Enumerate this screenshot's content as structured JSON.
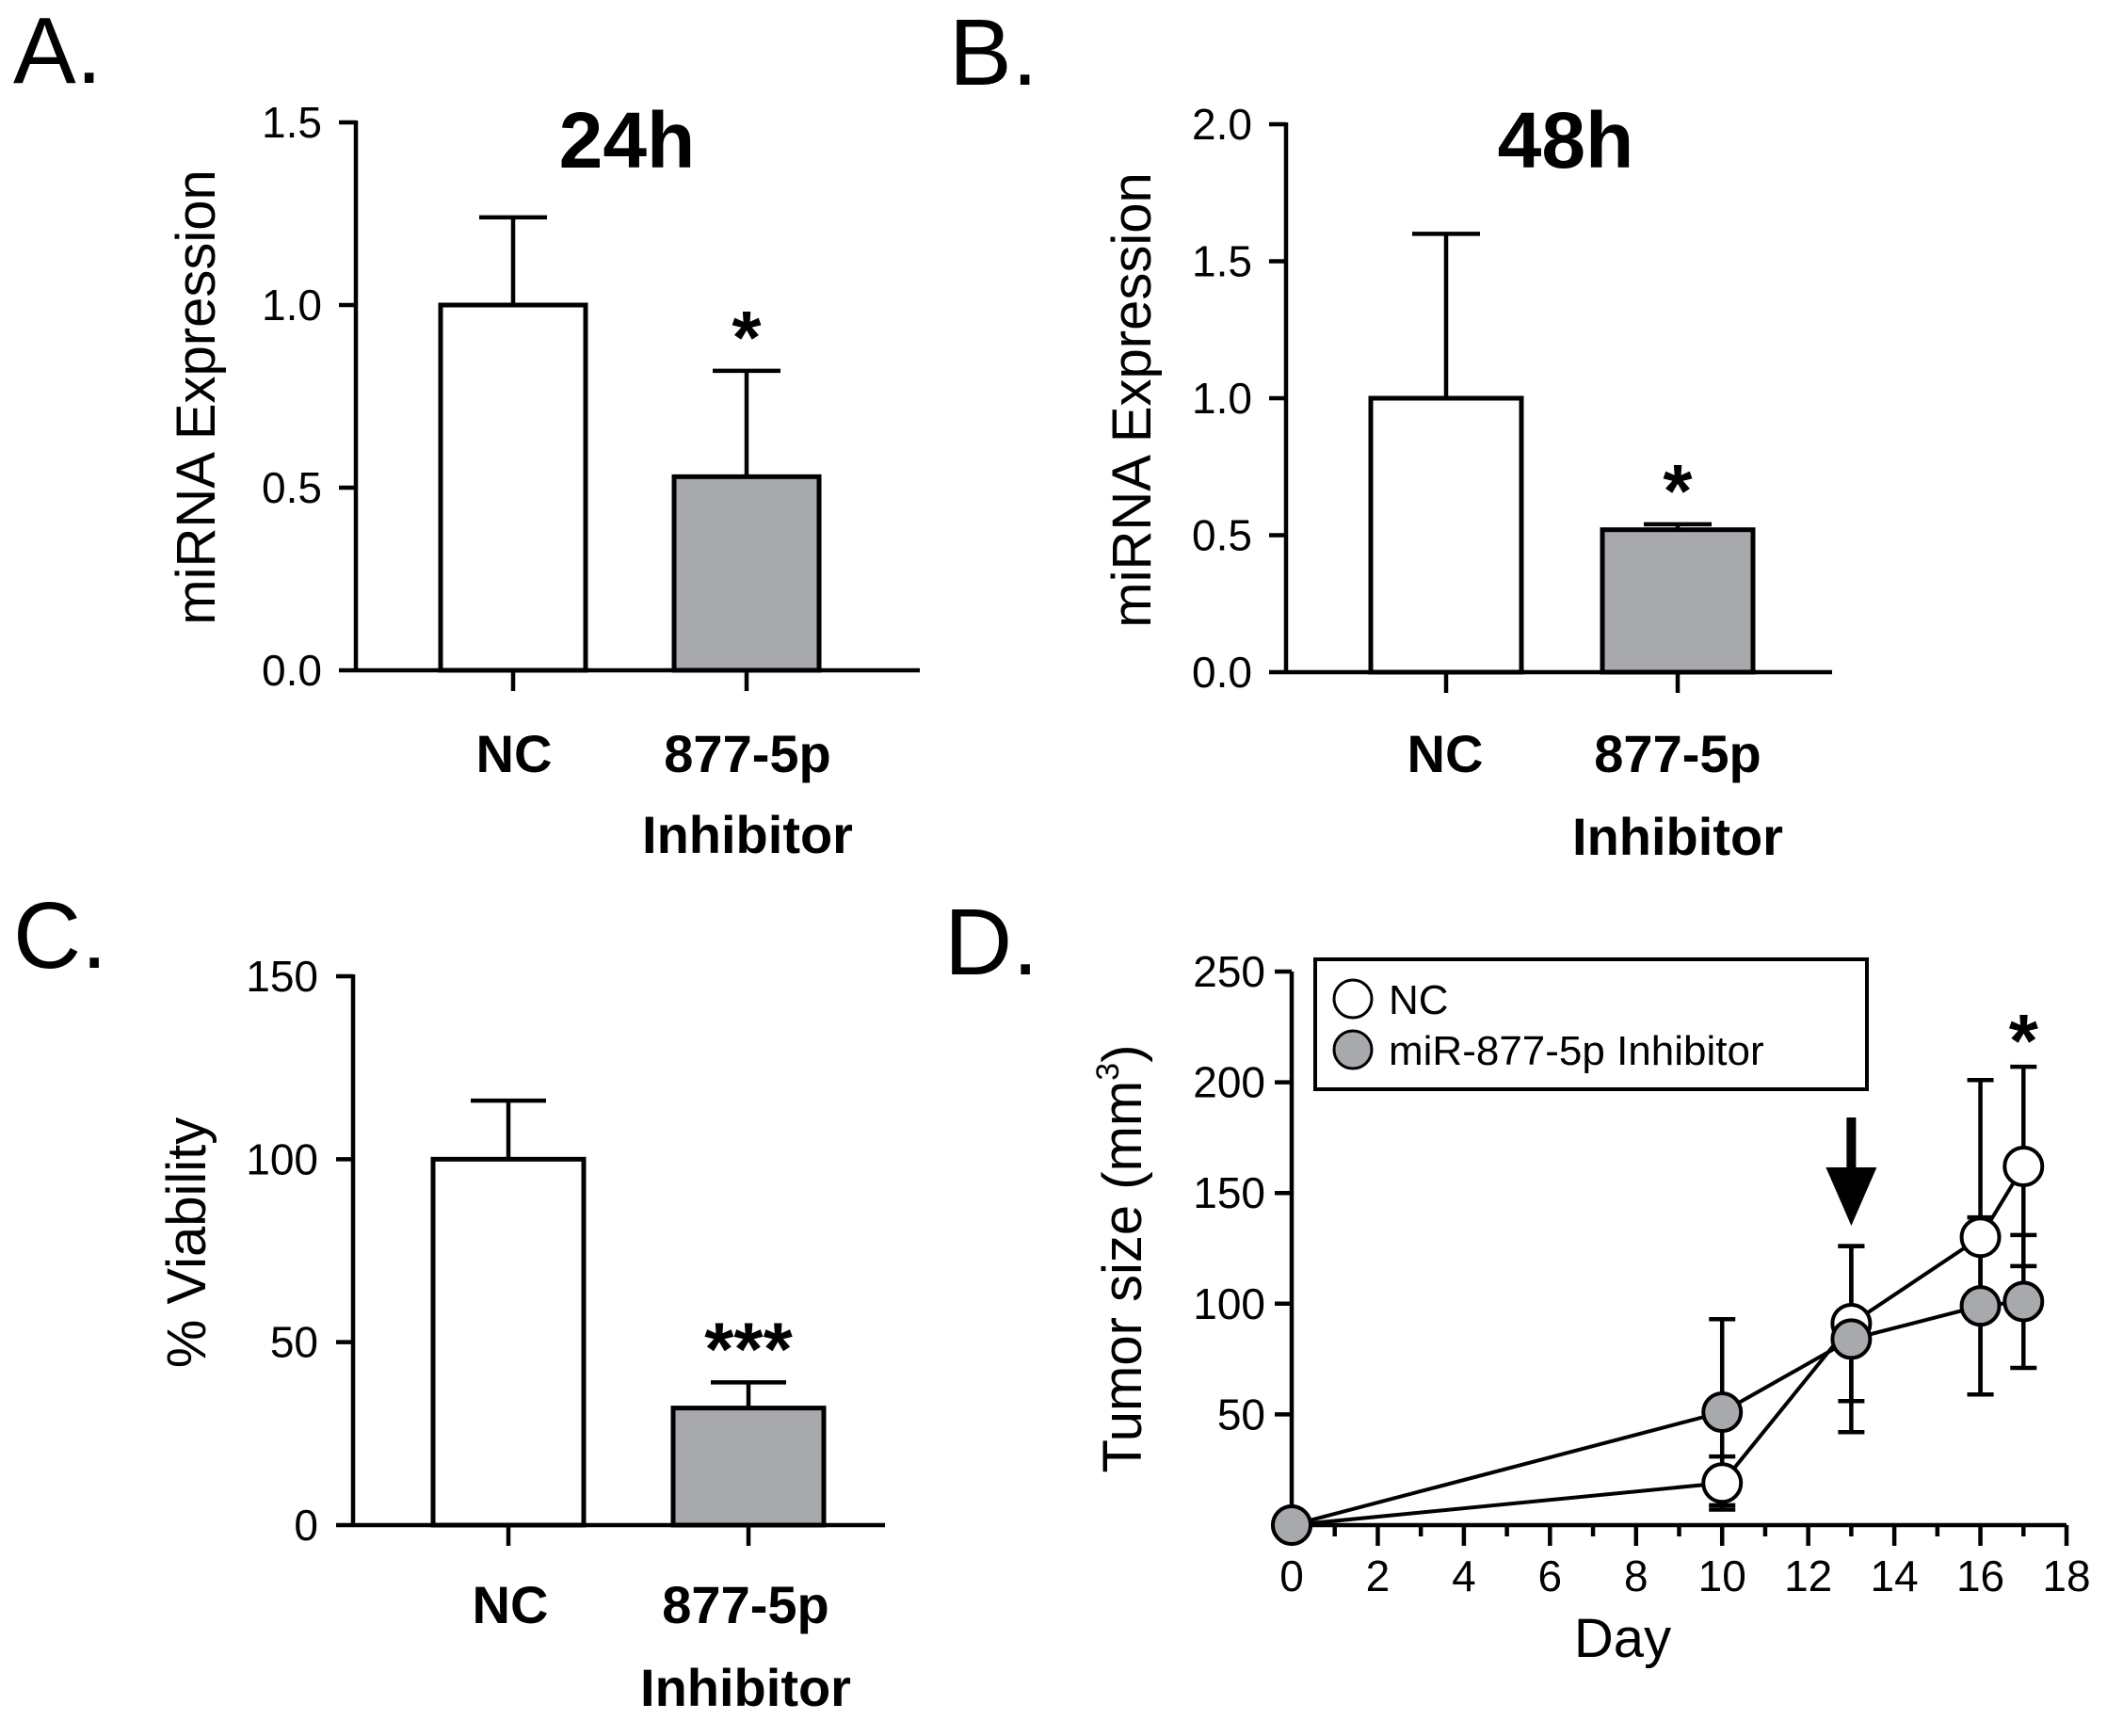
{
  "colors": {
    "nc_fill": "#ffffff",
    "inhibitor_fill": "#a7a9ac",
    "stroke": "#000000"
  },
  "chart_data": [
    {
      "panel": "A.",
      "type": "bar",
      "title": "24h",
      "ylabel": "miRNA Expression",
      "ylim": [
        0,
        1.5
      ],
      "yticks": [
        "0.0",
        "0.5",
        "1.0",
        "1.5"
      ],
      "categories": [
        [
          "NC"
        ],
        [
          "877-5p",
          "Inhibitor"
        ]
      ],
      "values": [
        1.0,
        0.53
      ],
      "errors": [
        0.24,
        0.29
      ],
      "significance": [
        "",
        "*"
      ]
    },
    {
      "panel": "B.",
      "type": "bar",
      "title": "48h",
      "ylabel": "miRNA Expression",
      "ylim": [
        0,
        2.0
      ],
      "yticks": [
        "0.0",
        "0.5",
        "1.0",
        "1.5",
        "2.0"
      ],
      "categories": [
        [
          "NC"
        ],
        [
          "877-5p",
          "Inhibitor"
        ]
      ],
      "values": [
        1.0,
        0.52
      ],
      "errors": [
        0.6,
        0.02
      ],
      "significance": [
        "",
        "*"
      ]
    },
    {
      "panel": "C.",
      "type": "bar",
      "title": "",
      "ylabel": "% Viability",
      "ylim": [
        0,
        150
      ],
      "yticks": [
        "0",
        "50",
        "100",
        "150"
      ],
      "categories": [
        [
          "NC"
        ],
        [
          "877-5p",
          "Inhibitor"
        ]
      ],
      "values": [
        100,
        32
      ],
      "errors": [
        16,
        7
      ],
      "significance": [
        "",
        "***"
      ]
    },
    {
      "panel": "D.",
      "type": "line",
      "xlabel": "Day",
      "ylabel": "Tumor size (mm",
      "ylabel_sup": "3",
      "ylabel_close": ")",
      "xlim": [
        0,
        18
      ],
      "ylim": [
        0,
        250
      ],
      "xticks": [
        "0",
        "2",
        "4",
        "6",
        "8",
        "10",
        "12",
        "14",
        "16",
        "18"
      ],
      "yticks": [
        "50",
        "100",
        "150",
        "200",
        "250"
      ],
      "arrow_day": 13,
      "significance": {
        "day": 17,
        "text": "*"
      },
      "series": [
        {
          "name": "NC",
          "x": [
            0,
            10,
            13,
            16,
            17
          ],
          "y": [
            0,
            19,
            91,
            130,
            162
          ],
          "err": [
            0,
            12,
            35,
            71,
            45
          ]
        },
        {
          "name": "miR-877-5p Inhibitor",
          "x": [
            0,
            10,
            13,
            16,
            17
          ],
          "y": [
            0,
            51,
            84,
            99,
            101
          ],
          "err": [
            0,
            42,
            42,
            40,
            30
          ]
        }
      ]
    }
  ]
}
